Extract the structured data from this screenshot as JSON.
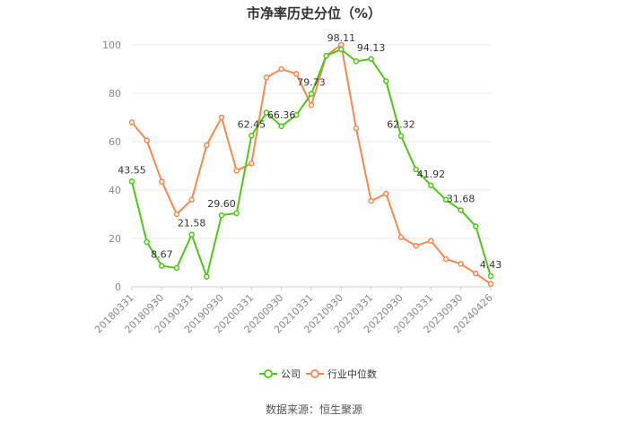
{
  "chart_data": {
    "type": "line",
    "title": "市净率历史分位（%）",
    "source": "数据来源：恒生聚源",
    "ylim": [
      0,
      100
    ],
    "yticks": [
      0,
      20,
      40,
      60,
      80,
      100
    ],
    "x_tick_labels": [
      "20180331",
      "20180930",
      "20190331",
      "20190930",
      "20200331",
      "20200930",
      "20210331",
      "20210930",
      "20220331",
      "20220930",
      "20230331",
      "20230930",
      "20240426"
    ],
    "x": [
      "20180331",
      "20180630",
      "20180930",
      "20181231",
      "20190331",
      "20190630",
      "20190930",
      "20191231",
      "20200331",
      "20200630",
      "20200930",
      "20201231",
      "20210331",
      "20210630",
      "20210930",
      "20211231",
      "20220331",
      "20220630",
      "20220930",
      "20221231",
      "20230331",
      "20230630",
      "20230930",
      "20231231",
      "20240426"
    ],
    "series": [
      {
        "name": "公司",
        "color": "#52c41a",
        "values": [
          43.55,
          18.5,
          8.67,
          7.8,
          21.58,
          4.2,
          29.6,
          30.4,
          62.45,
          72.0,
          66.36,
          71.0,
          79.73,
          95.5,
          98.11,
          93.2,
          94.13,
          85.0,
          62.32,
          48.5,
          41.92,
          36.0,
          31.68,
          25.0,
          4.43
        ],
        "labeled_points": [
          0,
          2,
          4,
          6,
          8,
          10,
          12,
          14,
          16,
          18,
          20,
          22,
          24
        ]
      },
      {
        "name": "行业中位数",
        "color": "#f5894f",
        "values": [
          68.0,
          60.5,
          43.5,
          30.0,
          36.0,
          58.5,
          70.0,
          48.0,
          51.0,
          86.5,
          90.0,
          88.0,
          75.0,
          95.5,
          100.0,
          65.5,
          35.5,
          38.5,
          20.5,
          17.0,
          19.0,
          11.5,
          9.5,
          5.5,
          1.2
        ]
      }
    ],
    "legend": [
      {
        "label": "公司",
        "color": "#52c41a"
      },
      {
        "label": "行业中位数",
        "color": "#f5894f"
      }
    ],
    "grid": true,
    "legend_position": "bottom"
  }
}
